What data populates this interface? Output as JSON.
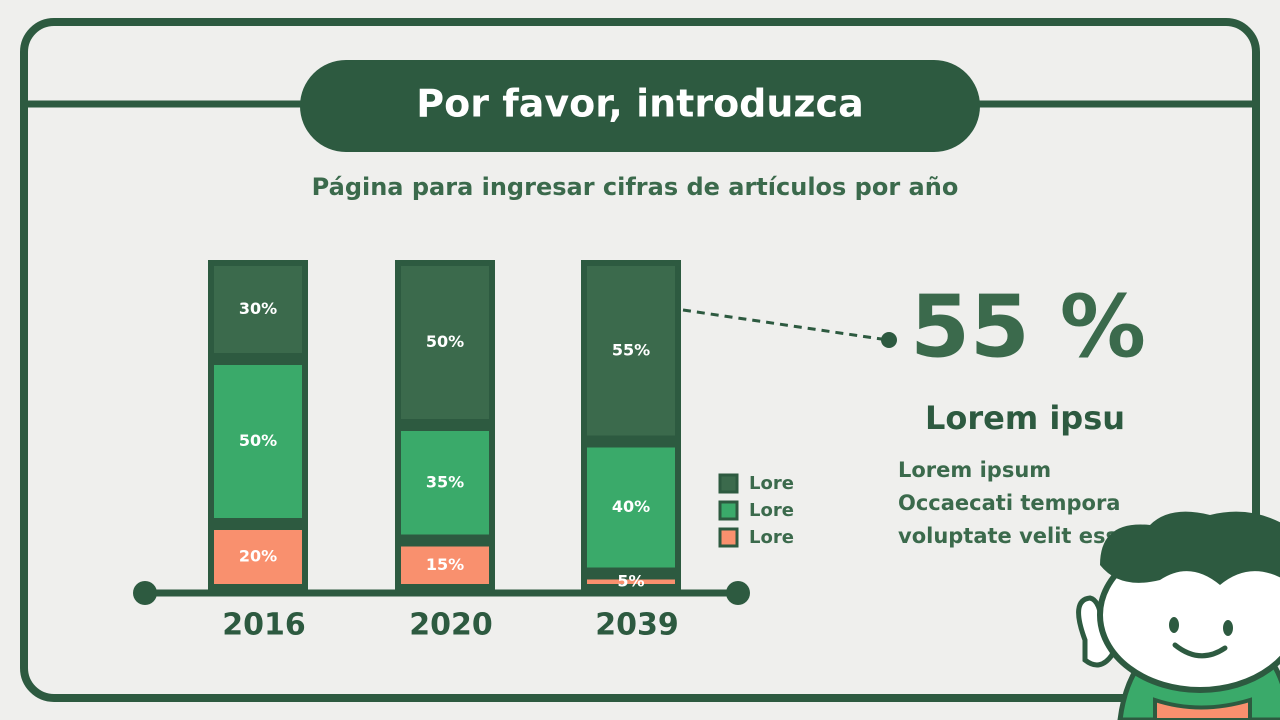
{
  "chart_data": {
    "type": "bar",
    "stacked": true,
    "title": "Por favor, introduzca",
    "subtitle": "Página para ingresar cifras de artículos por año",
    "categories": [
      "2016",
      "2020",
      "2039"
    ],
    "series": [
      {
        "name": "Lore",
        "color": "#3b6a4c",
        "values": [
          30,
          50,
          55
        ],
        "value_labels": [
          "30%",
          "50%",
          "55%"
        ]
      },
      {
        "name": "Lore",
        "color": "#3aaa6a",
        "values": [
          50,
          35,
          40
        ],
        "value_labels": [
          "50%",
          "35%",
          "40%"
        ]
      },
      {
        "name": "Lore",
        "color": "#f9906e",
        "values": [
          20,
          15,
          5
        ],
        "value_labels": [
          "20%",
          "15%",
          "5%"
        ]
      }
    ],
    "callout": {
      "label": "55 %",
      "heading": "Lorem ipsu",
      "lines": [
        "Lorem ipsum",
        "Occaecati tempora",
        "voluptate velit esse"
      ]
    }
  }
}
